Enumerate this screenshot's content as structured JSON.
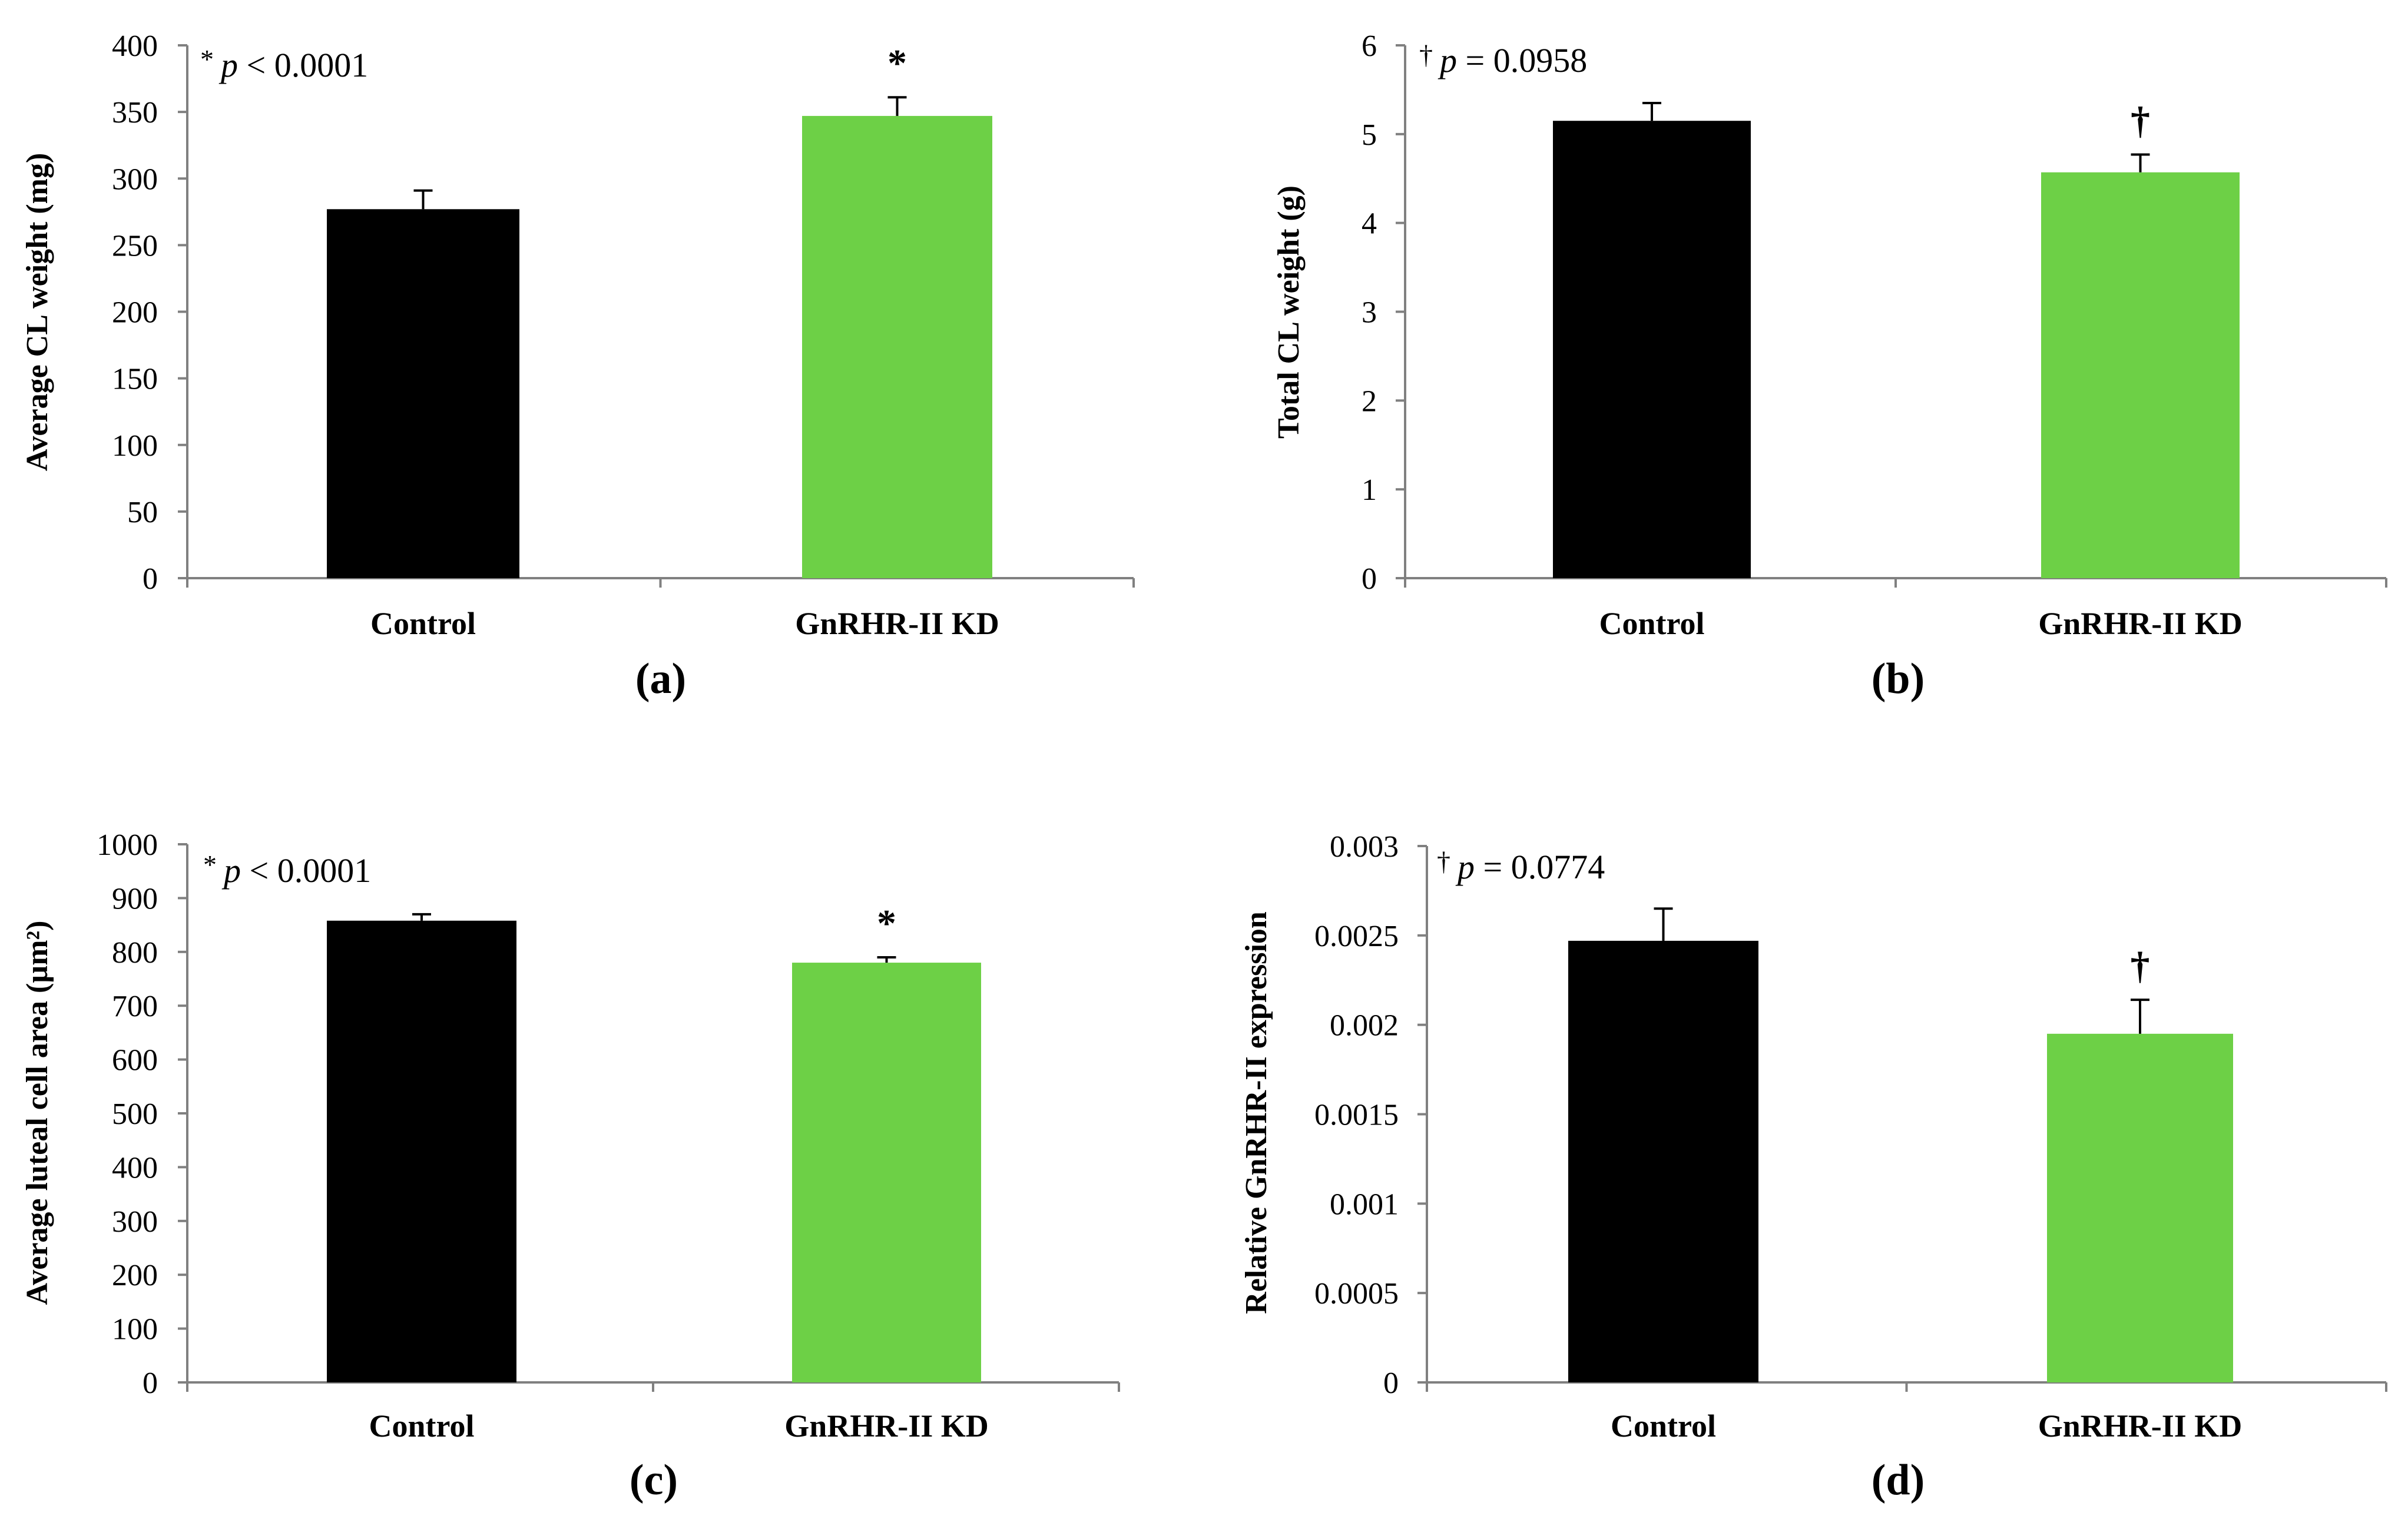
{
  "colors": {
    "control": "#000000",
    "knockdown": "#6dd046"
  },
  "chart_data": [
    {
      "type": "bar",
      "panel": "(a)",
      "ylabel": "Average CL weight (mg)",
      "categories": [
        "Control",
        "GnRHR-II KD"
      ],
      "values": [
        277,
        347
      ],
      "errors": [
        14,
        14
      ],
      "ylim": [
        0,
        400
      ],
      "yticks": [
        0,
        50,
        100,
        150,
        200,
        250,
        300,
        350,
        400
      ],
      "ytick_labels": [
        "0",
        "50",
        "100",
        "150",
        "200",
        "250",
        "300",
        "350",
        "400"
      ],
      "significance_marks": [
        "",
        "*"
      ],
      "annotation": {
        "symbol": "*",
        "p": "p",
        "rest": " < 0.0001"
      }
    },
    {
      "type": "bar",
      "panel": "(b)",
      "ylabel": "Total CL weight (g)",
      "categories": [
        "Control",
        "GnRHR-II KD"
      ],
      "values": [
        5.15,
        4.57
      ],
      "errors": [
        0.2,
        0.2
      ],
      "ylim": [
        0,
        6
      ],
      "yticks": [
        0,
        1,
        2,
        3,
        4,
        5,
        6
      ],
      "ytick_labels": [
        "0",
        "1",
        "2",
        "3",
        "4",
        "5",
        "6"
      ],
      "significance_marks": [
        "",
        "†"
      ],
      "annotation": {
        "symbol": "†",
        "p": "p",
        "rest": " = 0.0958"
      }
    },
    {
      "type": "bar",
      "panel": "(c)",
      "ylabel": "Average luteal cell area (µm²)",
      "categories": [
        "Control",
        "GnRHR-II KD"
      ],
      "values": [
        858,
        780
      ],
      "errors": [
        12,
        10
      ],
      "ylim": [
        0,
        1000
      ],
      "yticks": [
        0,
        100,
        200,
        300,
        400,
        500,
        600,
        700,
        800,
        900,
        1000
      ],
      "ytick_labels": [
        "0",
        "100",
        "200",
        "300",
        "400",
        "500",
        "600",
        "700",
        "800",
        "900",
        "1000"
      ],
      "significance_marks": [
        "",
        "*"
      ],
      "annotation": {
        "symbol": "*",
        "p": "p",
        "rest": " < 0.0001"
      }
    },
    {
      "type": "bar",
      "panel": "(d)",
      "ylabel": "Relative GnRHR-II expression",
      "categories": [
        "Control",
        "GnRHR-II KD"
      ],
      "values": [
        0.00247,
        0.00195
      ],
      "errors": [
        0.00018,
        0.00019
      ],
      "ylim": [
        0,
        0.003
      ],
      "yticks": [
        0,
        0.0005,
        0.001,
        0.0015,
        0.002,
        0.0025,
        0.003
      ],
      "ytick_labels": [
        "0",
        "0.0005",
        "0.001",
        "0.0015",
        "0.002",
        "0.0025",
        "0.003"
      ],
      "significance_marks": [
        "",
        "†"
      ],
      "annotation": {
        "symbol": "†",
        "p": "p",
        "rest": " = 0.0774"
      }
    }
  ]
}
